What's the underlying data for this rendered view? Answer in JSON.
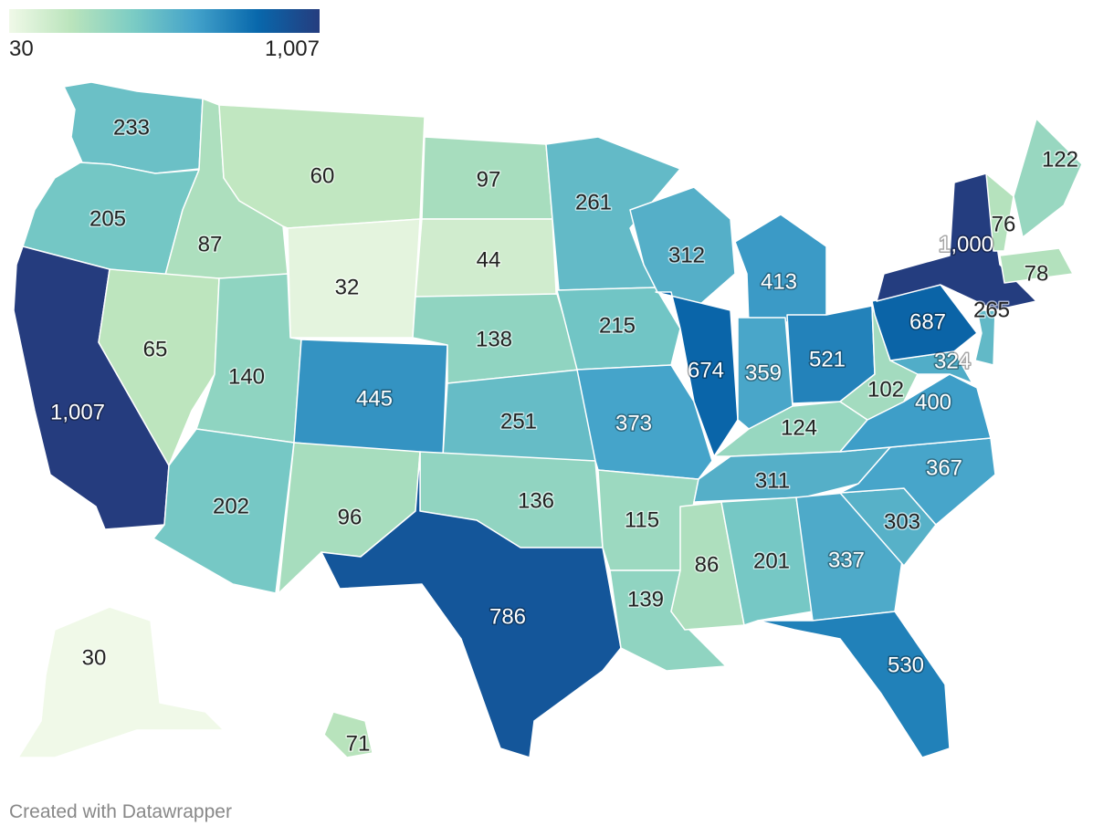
{
  "legend": {
    "min_label": "30",
    "max_label": "1,007",
    "min": 30,
    "max": 1007,
    "gradient": [
      "#f0f9e8",
      "#bae4bc",
      "#7bccc4",
      "#43a2ca",
      "#0868ac",
      "#253c7e"
    ]
  },
  "credit": "Created with Datawrapper",
  "map_data": {
    "type": "choropleth",
    "region": "United States",
    "states": [
      {
        "state": "Washington",
        "value": 233,
        "label": "233"
      },
      {
        "state": "Oregon",
        "value": 205,
        "label": "205"
      },
      {
        "state": "California",
        "value": 1007,
        "label": "1,007"
      },
      {
        "state": "Idaho",
        "value": 87,
        "label": "87"
      },
      {
        "state": "Nevada",
        "value": 65,
        "label": "65"
      },
      {
        "state": "Montana",
        "value": 60,
        "label": "60"
      },
      {
        "state": "Wyoming",
        "value": 32,
        "label": "32"
      },
      {
        "state": "Utah",
        "value": 140,
        "label": "140"
      },
      {
        "state": "Arizona",
        "value": 202,
        "label": "202"
      },
      {
        "state": "Colorado",
        "value": 445,
        "label": "445"
      },
      {
        "state": "New Mexico",
        "value": 96,
        "label": "96"
      },
      {
        "state": "North Dakota",
        "value": 97,
        "label": "97"
      },
      {
        "state": "South Dakota",
        "value": 44,
        "label": "44"
      },
      {
        "state": "Nebraska",
        "value": 138,
        "label": "138"
      },
      {
        "state": "Kansas",
        "value": 251,
        "label": "251"
      },
      {
        "state": "Oklahoma",
        "value": 136,
        "label": "136"
      },
      {
        "state": "Texas",
        "value": 786,
        "label": "786"
      },
      {
        "state": "Minnesota",
        "value": 261,
        "label": "261"
      },
      {
        "state": "Iowa",
        "value": 215,
        "label": "215"
      },
      {
        "state": "Missouri",
        "value": 373,
        "label": "373"
      },
      {
        "state": "Arkansas",
        "value": 115,
        "label": "115"
      },
      {
        "state": "Louisiana",
        "value": 139,
        "label": "139"
      },
      {
        "state": "Wisconsin",
        "value": 312,
        "label": "312"
      },
      {
        "state": "Illinois",
        "value": 674,
        "label": "674"
      },
      {
        "state": "Michigan",
        "value": 413,
        "label": "413"
      },
      {
        "state": "Indiana",
        "value": 359,
        "label": "359"
      },
      {
        "state": "Ohio",
        "value": 521,
        "label": "521"
      },
      {
        "state": "Kentucky",
        "value": 124,
        "label": "124"
      },
      {
        "state": "Tennessee",
        "value": 311,
        "label": "311"
      },
      {
        "state": "Mississippi",
        "value": 86,
        "label": "86"
      },
      {
        "state": "Alabama",
        "value": 201,
        "label": "201"
      },
      {
        "state": "Georgia",
        "value": 337,
        "label": "337"
      },
      {
        "state": "Florida",
        "value": 530,
        "label": "530"
      },
      {
        "state": "South Carolina",
        "value": 303,
        "label": "303"
      },
      {
        "state": "North Carolina",
        "value": 367,
        "label": "367"
      },
      {
        "state": "Virginia",
        "value": 400,
        "label": "400"
      },
      {
        "state": "West Virginia",
        "value": 102,
        "label": "102"
      },
      {
        "state": "Maryland",
        "value": 324,
        "label": "324"
      },
      {
        "state": "Pennsylvania",
        "value": 687,
        "label": "687"
      },
      {
        "state": "New Jersey",
        "value": 265,
        "label": "265"
      },
      {
        "state": "New York",
        "value": 1000,
        "label": "1,000"
      },
      {
        "state": "Vermont",
        "value": 76,
        "label": "76"
      },
      {
        "state": "Massachusetts",
        "value": 78,
        "label": "78"
      },
      {
        "state": "Maine",
        "value": 122,
        "label": "122"
      },
      {
        "state": "Alaska",
        "value": 30,
        "label": "30"
      },
      {
        "state": "Hawaii",
        "value": 71,
        "label": "71"
      }
    ]
  }
}
